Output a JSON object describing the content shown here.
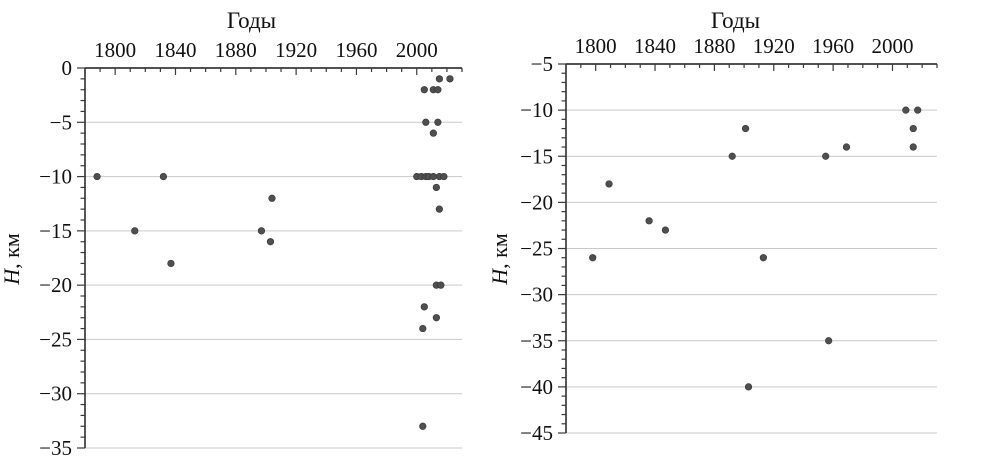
{
  "figure": {
    "description": "Two scatter plots of event depth H (km) versus year",
    "colors": {
      "point_fill": "#4f4f4f",
      "point_stroke": "#333333",
      "gridline": "#c9c9c9",
      "axis": "#3a3a3a",
      "text": "#111111",
      "background": "#ffffff"
    }
  },
  "chart_data": [
    {
      "type": "scatter",
      "title": "Годы",
      "xlabel": "",
      "ylabel": "H, км",
      "legend": null,
      "grid": "horizontal-major",
      "xlim": [
        1780,
        2030
      ],
      "ylim": [
        0,
        -35
      ],
      "x_ticks": [
        1800,
        1840,
        1880,
        1920,
        1960,
        2000
      ],
      "x_minor_step": 10,
      "y_ticks": [
        0,
        -5,
        -10,
        -15,
        -20,
        -25,
        -30,
        -35
      ],
      "y_minor_step": 1,
      "points": [
        [
          1788,
          -10
        ],
        [
          1832,
          -10
        ],
        [
          1813,
          -15
        ],
        [
          1837,
          -18
        ],
        [
          1897,
          -15
        ],
        [
          1903,
          -16
        ],
        [
          1904,
          -12
        ],
        [
          2015,
          -1
        ],
        [
          2022,
          -1
        ],
        [
          2005,
          -2
        ],
        [
          2011,
          -2
        ],
        [
          2014,
          -2
        ],
        [
          2006,
          -5
        ],
        [
          2014,
          -5
        ],
        [
          2011,
          -6
        ],
        [
          2000,
          -10
        ],
        [
          2003,
          -10
        ],
        [
          2006,
          -10
        ],
        [
          2008,
          -10
        ],
        [
          2011,
          -10
        ],
        [
          2015,
          -10
        ],
        [
          2018,
          -10
        ],
        [
          2013,
          -11
        ],
        [
          2015,
          -13
        ],
        [
          2013,
          -20
        ],
        [
          2016,
          -20
        ],
        [
          2005,
          -22
        ],
        [
          2013,
          -23
        ],
        [
          2004,
          -24
        ],
        [
          2004,
          -33
        ]
      ]
    },
    {
      "type": "scatter",
      "title": "Годы",
      "xlabel": "",
      "ylabel": "H, км",
      "legend": null,
      "grid": "horizontal-major",
      "xlim": [
        1780,
        2030
      ],
      "ylim": [
        -5,
        -45
      ],
      "x_ticks": [
        1800,
        1840,
        1880,
        1920,
        1960,
        2000
      ],
      "x_minor_step": 10,
      "y_ticks": [
        -5,
        -10,
        -15,
        -20,
        -25,
        -30,
        -35,
        -40,
        -45
      ],
      "y_minor_step": 1,
      "points": [
        [
          1798,
          -26
        ],
        [
          1809,
          -18
        ],
        [
          1836,
          -22
        ],
        [
          1847,
          -23
        ],
        [
          1892,
          -15
        ],
        [
          1901,
          -12
        ],
        [
          1903,
          -40
        ],
        [
          1913,
          -26
        ],
        [
          1955,
          -15
        ],
        [
          1957,
          -35
        ],
        [
          1969,
          -14
        ],
        [
          2009,
          -10
        ],
        [
          2017,
          -10
        ],
        [
          2014,
          -12
        ],
        [
          2014,
          -14
        ]
      ]
    }
  ]
}
